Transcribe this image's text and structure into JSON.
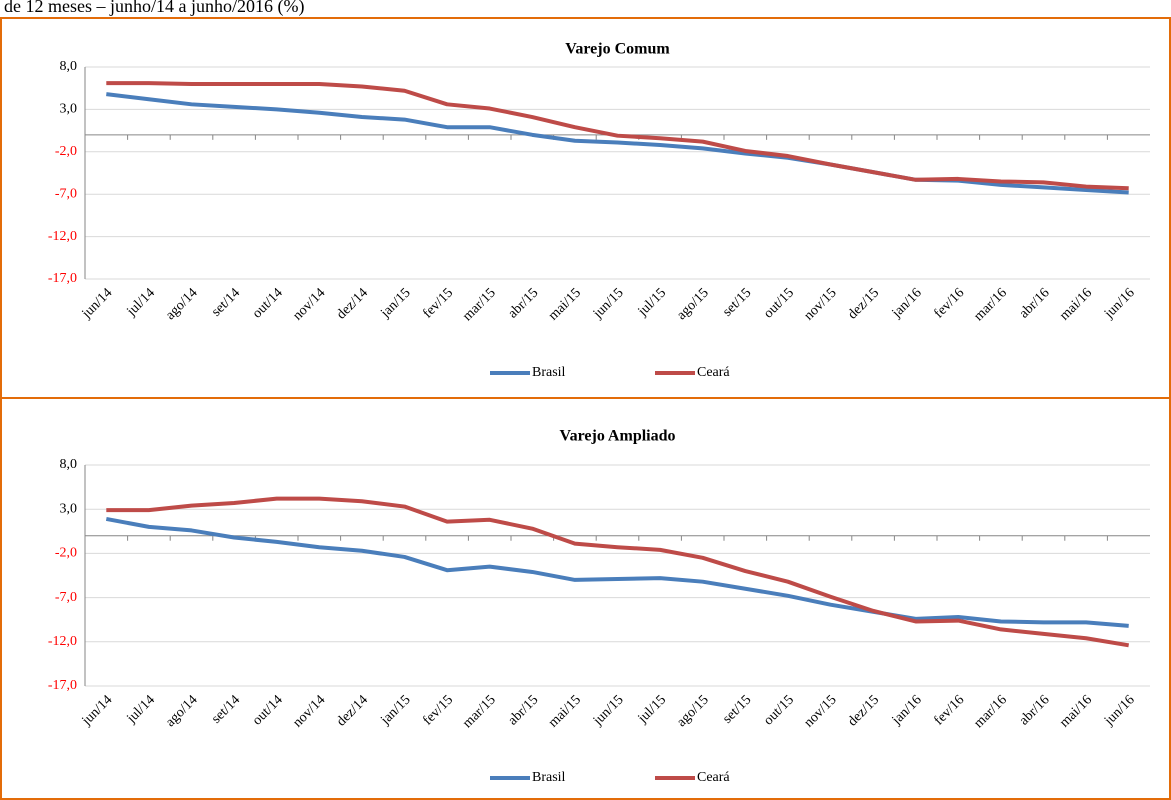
{
  "caption": "de 12 meses – junho/14 a junho/2016 (%)",
  "chart_data": [
    {
      "type": "line",
      "title": "Varejo Comum",
      "categories": [
        "jun/14",
        "jul/14",
        "ago/14",
        "set/14",
        "out/14",
        "nov/14",
        "dez/14",
        "jan/15",
        "fev/15",
        "mar/15",
        "abr/15",
        "mai/15",
        "jun/15",
        "jul/15",
        "ago/15",
        "set/15",
        "out/15",
        "nov/15",
        "dez/15",
        "jan/16",
        "fev/16",
        "mar/16",
        "abr/16",
        "mai/16",
        "jun/16"
      ],
      "series": [
        {
          "name": "Brasil",
          "color": "#4a7ebb",
          "values": [
            4.8,
            4.2,
            3.6,
            3.3,
            3.0,
            2.6,
            2.1,
            1.8,
            0.9,
            0.9,
            0.0,
            -0.7,
            -0.9,
            -1.2,
            -1.6,
            -2.2,
            -2.7,
            -3.5,
            -4.4,
            -5.3,
            -5.4,
            -5.9,
            -6.2,
            -6.5,
            -6.8
          ]
        },
        {
          "name": "Ceará",
          "color": "#be4b48",
          "values": [
            6.1,
            6.1,
            6.0,
            6.0,
            6.0,
            6.0,
            5.7,
            5.2,
            3.6,
            3.1,
            2.1,
            0.9,
            -0.1,
            -0.4,
            -0.8,
            -1.9,
            -2.5,
            -3.5,
            -4.4,
            -5.3,
            -5.2,
            -5.5,
            -5.6,
            -6.1,
            -6.3
          ]
        }
      ],
      "ylim": [
        -17,
        8
      ],
      "yticks": [
        {
          "value": 8,
          "label": "8,0"
        },
        {
          "value": 3,
          "label": "3,0"
        },
        {
          "value": -2,
          "label": "-2,0"
        },
        {
          "value": -7,
          "label": "-7,0"
        },
        {
          "value": -12,
          "label": "-12,0"
        },
        {
          "value": -17,
          "label": "-17,0"
        }
      ],
      "grid": true,
      "negative_tick_color": "#ff0000",
      "legend": "bottom"
    },
    {
      "type": "line",
      "title": "Varejo Ampliado",
      "categories": [
        "jun/14",
        "jul/14",
        "ago/14",
        "set/14",
        "out/14",
        "nov/14",
        "dez/14",
        "jan/15",
        "fev/15",
        "mar/15",
        "abr/15",
        "mai/15",
        "jun/15",
        "jul/15",
        "ago/15",
        "set/15",
        "out/15",
        "nov/15",
        "dez/15",
        "jan/16",
        "fev/16",
        "mar/16",
        "abr/16",
        "mai/16",
        "jun/16"
      ],
      "series": [
        {
          "name": "Brasil",
          "color": "#4a7ebb",
          "values": [
            1.9,
            1.0,
            0.6,
            -0.2,
            -0.7,
            -1.3,
            -1.7,
            -2.4,
            -3.9,
            -3.5,
            -4.1,
            -5.0,
            -4.9,
            -4.8,
            -5.2,
            -6.0,
            -6.8,
            -7.8,
            -8.6,
            -9.4,
            -9.2,
            -9.7,
            -9.8,
            -9.8,
            -10.2
          ]
        },
        {
          "name": "Ceará",
          "color": "#be4b48",
          "values": [
            2.9,
            2.9,
            3.4,
            3.7,
            4.2,
            4.2,
            3.9,
            3.3,
            1.6,
            1.8,
            0.8,
            -0.9,
            -1.3,
            -1.6,
            -2.5,
            -4.0,
            -5.2,
            -6.9,
            -8.5,
            -9.7,
            -9.6,
            -10.6,
            -11.1,
            -11.6,
            -12.4
          ]
        }
      ],
      "ylim": [
        -17,
        8
      ],
      "yticks": [
        {
          "value": 8,
          "label": "8,0"
        },
        {
          "value": 3,
          "label": "3,0"
        },
        {
          "value": -2,
          "label": "-2,0"
        },
        {
          "value": -7,
          "label": "-7,0"
        },
        {
          "value": -12,
          "label": "-12,0"
        },
        {
          "value": -17,
          "label": "-17,0"
        }
      ],
      "grid": true,
      "negative_tick_color": "#ff0000",
      "legend": "bottom"
    }
  ]
}
